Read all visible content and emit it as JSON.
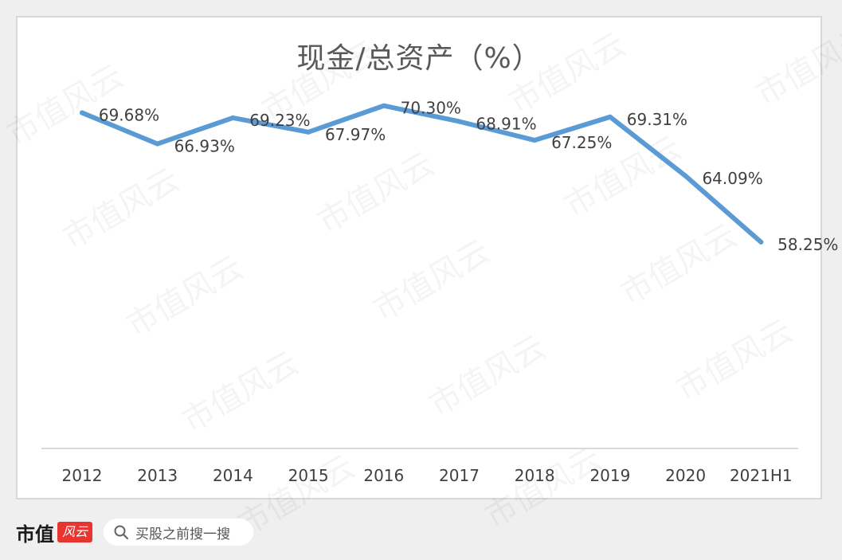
{
  "colors": {
    "line": "#5b9bd5",
    "text": "#404040",
    "title": "#595959",
    "axis": "#d9d9d9",
    "brand_red": "#e8352f"
  },
  "footer": {
    "brand": "市值",
    "badge": "风云",
    "search_placeholder": "买股之前搜一搜",
    "icons": [
      "search-icon"
    ]
  },
  "watermark": "市值风云",
  "chart_data": {
    "type": "line",
    "title": "现金/总资产（%）",
    "categories": [
      "2012",
      "2013",
      "2014",
      "2015",
      "2016",
      "2017",
      "2018",
      "2019",
      "2020",
      "2021H1"
    ],
    "series": [
      {
        "values": [
          69.68,
          66.93,
          69.23,
          67.97,
          70.3,
          68.91,
          67.25,
          69.31,
          64.09,
          58.25
        ],
        "labels": [
          "69.68%",
          "66.93%",
          "69.23%",
          "67.97%",
          "70.30%",
          "68.91%",
          "67.25%",
          "69.31%",
          "64.09%",
          "58.25%"
        ]
      }
    ],
    "xlabel": "",
    "ylabel": "",
    "ylim": [
      40,
      75
    ],
    "grid": false,
    "legend": "none",
    "y_axis_visible": false
  }
}
